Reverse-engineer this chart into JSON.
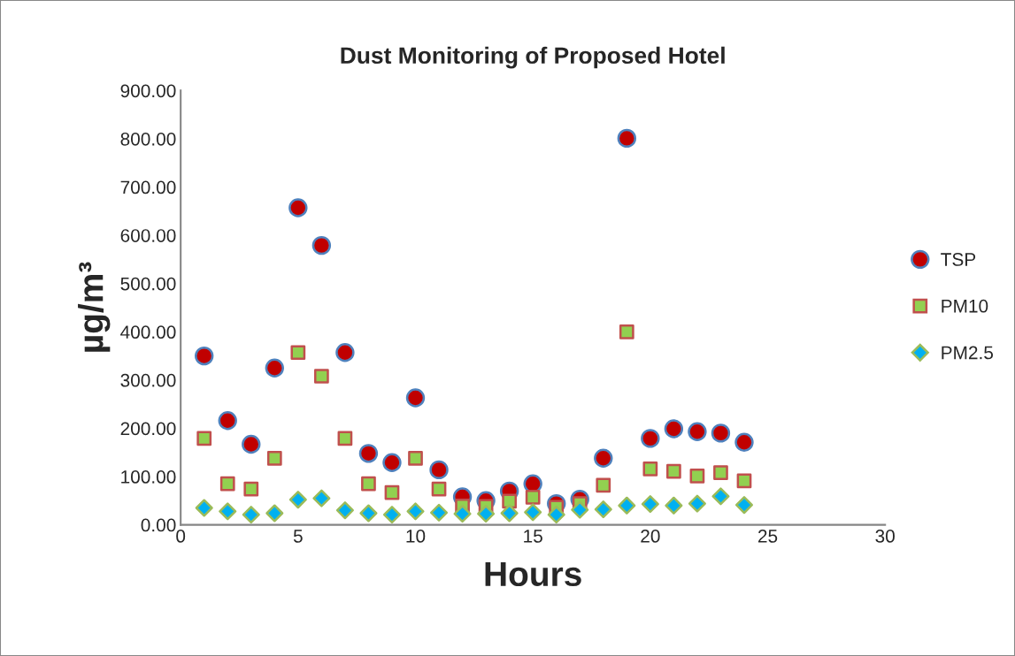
{
  "chart_data": {
    "type": "scatter",
    "title": "Dust Monitoring of Proposed Hotel",
    "xlabel": "Hours",
    "ylabel": "µg/m³",
    "x": [
      1,
      2,
      3,
      4,
      5,
      6,
      7,
      8,
      9,
      10,
      11,
      12,
      13,
      14,
      15,
      16,
      17,
      18,
      19,
      20,
      21,
      22,
      23,
      24
    ],
    "series": [
      {
        "name": "TSP",
        "color": "#c00000",
        "marker": "circle",
        "values": [
          350,
          216,
          167,
          325,
          657,
          579,
          357,
          148,
          129,
          263,
          114,
          58,
          50,
          70,
          85,
          44,
          53,
          138,
          801,
          179,
          199,
          193,
          190,
          171
        ]
      },
      {
        "name": "PM10",
        "color": "#92d050",
        "marker": "square",
        "values": [
          179,
          85,
          74,
          138,
          357,
          308,
          179,
          85,
          67,
          138,
          74,
          39,
          38,
          49,
          57,
          36,
          44,
          82,
          400,
          116,
          111,
          101,
          108,
          91
        ]
      },
      {
        "name": "PM2.5",
        "color": "#00b0f0",
        "marker": "diamond",
        "values": [
          35,
          28,
          21,
          24,
          52,
          55,
          30,
          24,
          21,
          28,
          25,
          23,
          23,
          24,
          26,
          21,
          31,
          32,
          40,
          43,
          40,
          44,
          59,
          41
        ]
      }
    ],
    "xlim": [
      0,
      30
    ],
    "xticks": [
      0,
      5,
      10,
      15,
      20,
      25,
      30
    ],
    "ylim": [
      0,
      900
    ],
    "yticks": [
      {
        "value": 0,
        "label": "0.00"
      },
      {
        "value": 100,
        "label": "100.00"
      },
      {
        "value": 200,
        "label": "200.00"
      },
      {
        "value": 300,
        "label": "300.00"
      },
      {
        "value": 400,
        "label": "400.00"
      },
      {
        "value": 500,
        "label": "500.00"
      },
      {
        "value": 600,
        "label": "600.00"
      },
      {
        "value": 700,
        "label": "700.00"
      },
      {
        "value": 800,
        "label": "800.00"
      },
      {
        "value": 900,
        "label": "900.00"
      }
    ],
    "grid": false,
    "legend": "right"
  }
}
